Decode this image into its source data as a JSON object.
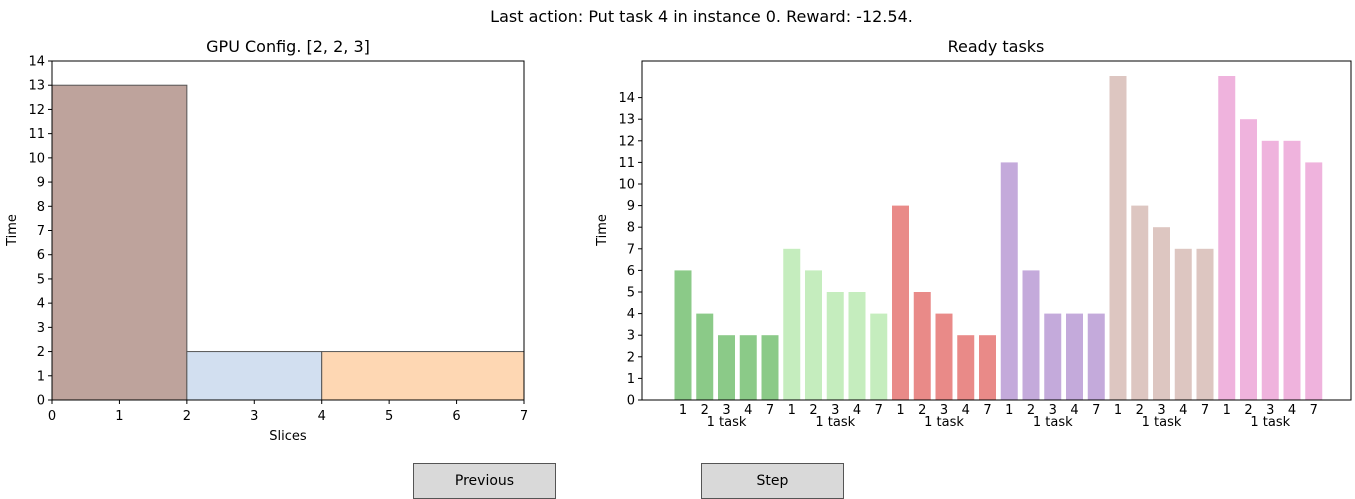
{
  "header": {
    "last_action": "Last action: Put task 4 in instance 0. Reward: -12.54."
  },
  "buttons": {
    "previous": "Previous",
    "step": "Step"
  },
  "chart_data": [
    {
      "type": "bar",
      "title": "GPU Config. [2, 2, 3]",
      "xlabel": "Slices",
      "ylabel": "Time",
      "xlim": [
        0,
        7
      ],
      "ylim": [
        0,
        14
      ],
      "xticks": [
        0,
        1,
        2,
        3,
        4,
        5,
        6,
        7
      ],
      "yticks": [
        0,
        1,
        2,
        3,
        4,
        5,
        6,
        7,
        8,
        9,
        10,
        11,
        12,
        13,
        14
      ],
      "blocks": [
        {
          "x_start": 0,
          "x_end": 2,
          "time": 13,
          "color": "#bea39c"
        },
        {
          "x_start": 2,
          "x_end": 4,
          "time": 2,
          "color": "#d2dff0"
        },
        {
          "x_start": 4,
          "x_end": 7,
          "time": 2,
          "color": "#fed7b3"
        }
      ]
    },
    {
      "type": "bar",
      "title": "Ready tasks",
      "ylabel": "Time",
      "yticks": [
        0,
        1,
        2,
        3,
        4,
        5,
        6,
        7,
        8,
        9,
        10,
        11,
        12,
        13,
        14
      ],
      "categories": [
        "1",
        "2",
        "3",
        "4",
        "7"
      ],
      "series": [
        {
          "label": "1 task",
          "color": "#8bca88",
          "values": [
            6,
            4,
            3,
            3,
            3
          ]
        },
        {
          "label": "1 task",
          "color": "#c5edbe",
          "values": [
            7,
            6,
            5,
            5,
            4
          ]
        },
        {
          "label": "1 task",
          "color": "#e98a88",
          "values": [
            9,
            5,
            4,
            3,
            3
          ]
        },
        {
          "label": "1 task",
          "color": "#c4aadb",
          "values": [
            11,
            6,
            4,
            4,
            4
          ]
        },
        {
          "label": "1 task",
          "color": "#ddc6c1",
          "values": [
            15,
            9,
            8,
            7,
            7
          ]
        },
        {
          "label": "1 task",
          "color": "#efb3dd",
          "values": [
            15,
            13,
            12,
            12,
            11
          ]
        }
      ]
    }
  ]
}
